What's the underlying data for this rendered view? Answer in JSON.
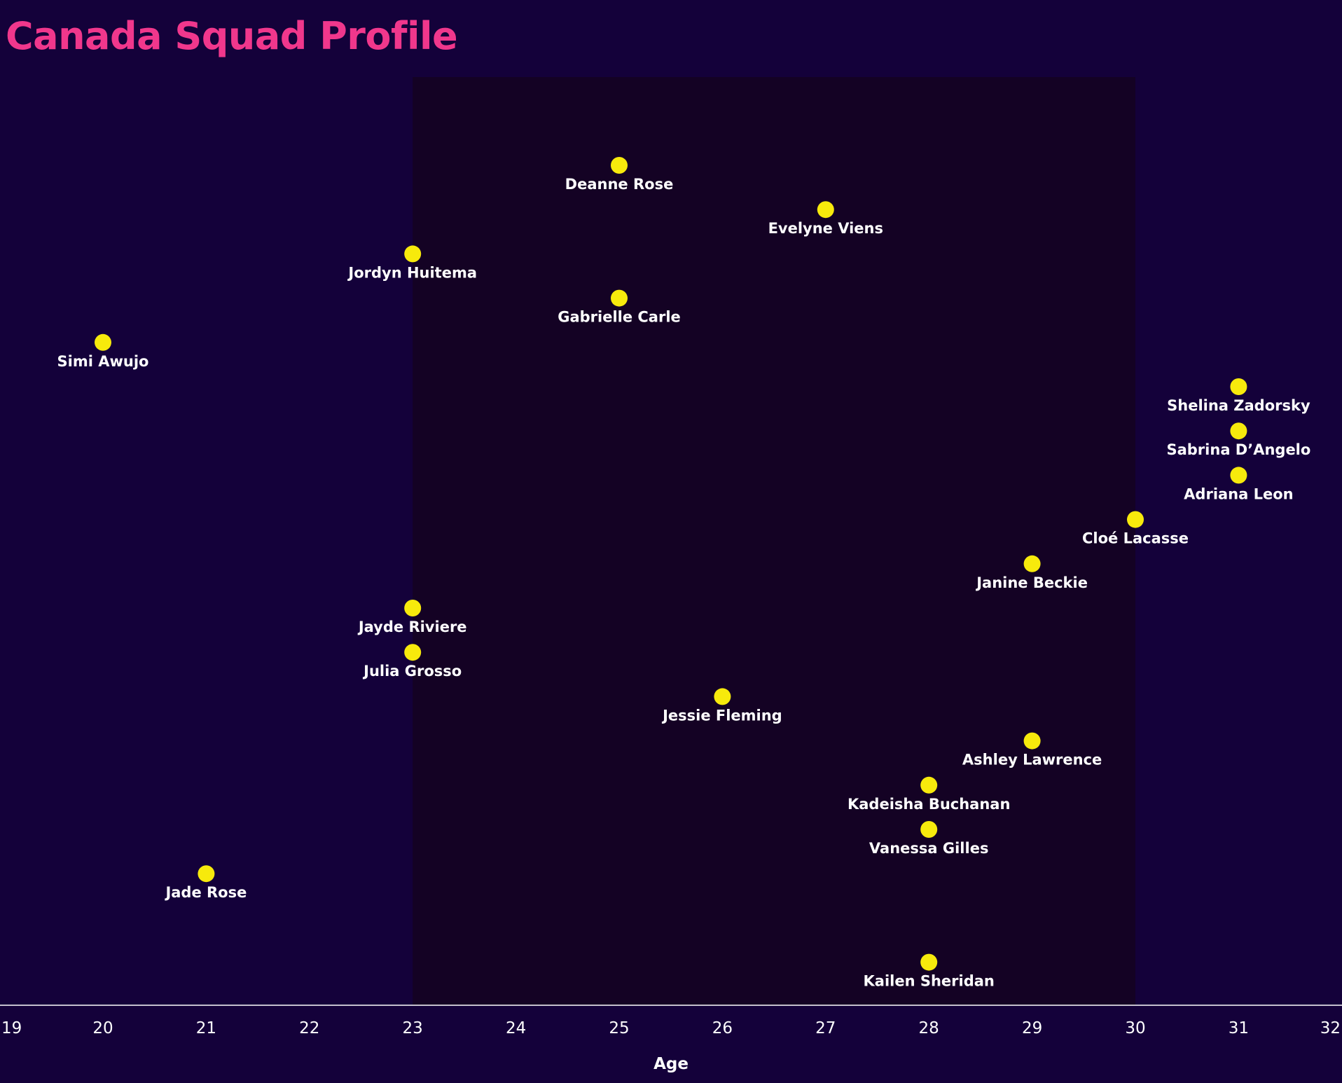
{
  "chart_data": {
    "type": "scatter",
    "title": "Canada Squad Profile",
    "xlabel": "Age",
    "ylabel": "",
    "xlim": [
      19,
      32
    ],
    "xticks": [
      19,
      20,
      21,
      22,
      23,
      24,
      25,
      26,
      27,
      28,
      29,
      30,
      31,
      32
    ],
    "highlight_range": [
      23,
      30
    ],
    "grid": false,
    "colors": {
      "background": "#14013a",
      "highlight": "#140224",
      "point": "#f7ea0c",
      "title": "#f0378c",
      "text": "#ffffff",
      "axis": "#ffffff"
    },
    "points": [
      {
        "name": "Deanne Rose",
        "age": 25
      },
      {
        "name": "Evelyne Viens",
        "age": 27
      },
      {
        "name": "Jordyn Huitema",
        "age": 23
      },
      {
        "name": "Gabrielle Carle",
        "age": 25
      },
      {
        "name": "Simi Awujo",
        "age": 20
      },
      {
        "name": "Shelina Zadorsky",
        "age": 31
      },
      {
        "name": "Sabrina D’Angelo",
        "age": 31
      },
      {
        "name": "Adriana Leon",
        "age": 31
      },
      {
        "name": "Cloé Lacasse",
        "age": 30
      },
      {
        "name": "Janine Beckie",
        "age": 29
      },
      {
        "name": "Jayde Riviere",
        "age": 23
      },
      {
        "name": "Julia Grosso",
        "age": 23
      },
      {
        "name": "Jessie Fleming",
        "age": 26
      },
      {
        "name": "Ashley Lawrence",
        "age": 29
      },
      {
        "name": "Kadeisha Buchanan",
        "age": 28
      },
      {
        "name": "Vanessa Gilles",
        "age": 28
      },
      {
        "name": "Jade Rose",
        "age": 21
      },
      {
        "name": "Kailen Sheridan",
        "age": 28
      }
    ]
  }
}
